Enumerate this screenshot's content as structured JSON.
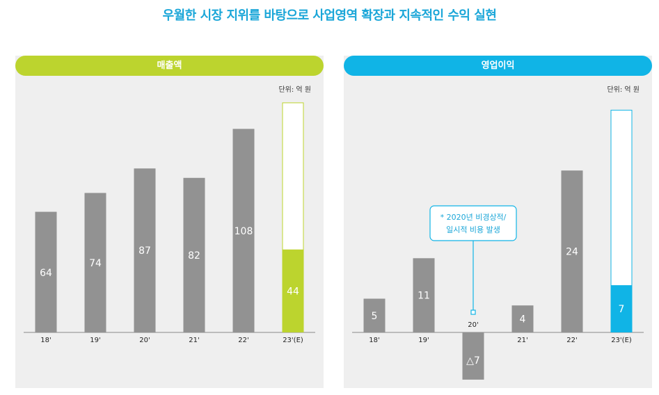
{
  "headline": "우월한 시장 지위를 바탕으로 사업영역 확장과 지속적인 수익 실현",
  "colors": {
    "bar_gray": "#929292",
    "revenue_accent": "#bcd42e",
    "profit_accent": "#10b4e6",
    "headline": "#1aa6d8",
    "panel_bg": "#efefef"
  },
  "chart_data": [
    {
      "type": "bar",
      "title": "매출액",
      "unit": "단위: 억 원",
      "categories": [
        "18'",
        "19'",
        "20'",
        "21'",
        "22'",
        "23'(E)"
      ],
      "value_labels": [
        "64",
        "74",
        "87",
        "82",
        "108",
        "44"
      ],
      "values": [
        64,
        74,
        87,
        82,
        108,
        44
      ],
      "estimate_total": 122,
      "ylim": [
        0,
        125
      ],
      "grid": false,
      "legend": "none"
    },
    {
      "type": "bar",
      "title": "영업이익",
      "unit": "단위: 억 원",
      "categories": [
        "18'",
        "19'",
        "20'",
        "21'",
        "22'",
        "23'(E)"
      ],
      "value_labels": [
        "5",
        "11",
        "△7",
        "4",
        "24",
        "7"
      ],
      "values": [
        5,
        11,
        -7,
        4,
        24,
        7
      ],
      "estimate_total": 33,
      "ylim": [
        -7.5,
        33
      ],
      "grid": false,
      "legend": "none",
      "annotation": {
        "category": "20'",
        "lines": [
          "* 2020년 비경상적/",
          "일시적 비용 발생"
        ]
      }
    }
  ]
}
